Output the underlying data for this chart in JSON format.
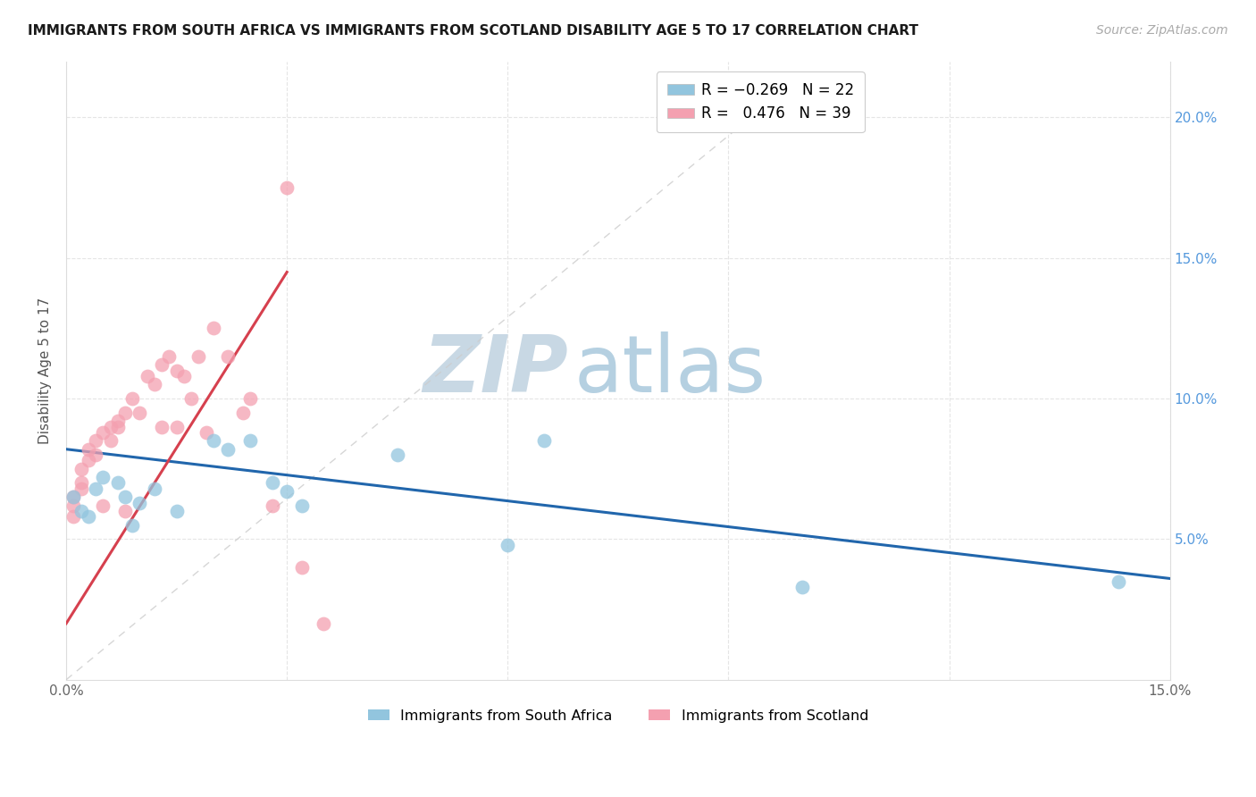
{
  "title": "IMMIGRANTS FROM SOUTH AFRICA VS IMMIGRANTS FROM SCOTLAND DISABILITY AGE 5 TO 17 CORRELATION CHART",
  "source": "Source: ZipAtlas.com",
  "ylabel": "Disability Age 5 to 17",
  "xmin": 0.0,
  "xmax": 0.15,
  "ymin": 0.0,
  "ymax": 0.22,
  "xticks": [
    0.0,
    0.03,
    0.06,
    0.09,
    0.12,
    0.15
  ],
  "xtick_labels": [
    "0.0%",
    "",
    "",
    "",
    "",
    "15.0%"
  ],
  "yticks": [
    0.05,
    0.1,
    0.15,
    0.2
  ],
  "ytick_labels_right": [
    "5.0%",
    "10.0%",
    "15.0%",
    "20.0%"
  ],
  "series1_color": "#92c5de",
  "series2_color": "#f4a0b0",
  "trendline1_color": "#2166ac",
  "trendline2_color": "#d6404e",
  "watermark_zip_color": "#c8d8e4",
  "watermark_atlas_color": "#a8c8dc",
  "south_africa_x": [
    0.001,
    0.002,
    0.003,
    0.004,
    0.005,
    0.007,
    0.008,
    0.009,
    0.01,
    0.012,
    0.015,
    0.02,
    0.022,
    0.025,
    0.028,
    0.03,
    0.032,
    0.045,
    0.06,
    0.065,
    0.1,
    0.143
  ],
  "south_africa_y": [
    0.065,
    0.06,
    0.058,
    0.068,
    0.072,
    0.07,
    0.065,
    0.055,
    0.063,
    0.068,
    0.06,
    0.085,
    0.082,
    0.085,
    0.07,
    0.067,
    0.062,
    0.08,
    0.048,
    0.085,
    0.033,
    0.035
  ],
  "scotland_x": [
    0.001,
    0.001,
    0.001,
    0.002,
    0.002,
    0.002,
    0.003,
    0.003,
    0.004,
    0.004,
    0.005,
    0.005,
    0.006,
    0.006,
    0.007,
    0.007,
    0.008,
    0.008,
    0.009,
    0.01,
    0.011,
    0.012,
    0.013,
    0.013,
    0.014,
    0.015,
    0.015,
    0.016,
    0.017,
    0.018,
    0.019,
    0.02,
    0.022,
    0.024,
    0.025,
    0.028,
    0.03,
    0.032,
    0.035
  ],
  "scotland_y": [
    0.058,
    0.062,
    0.065,
    0.068,
    0.07,
    0.075,
    0.078,
    0.082,
    0.08,
    0.085,
    0.088,
    0.062,
    0.085,
    0.09,
    0.092,
    0.09,
    0.095,
    0.06,
    0.1,
    0.095,
    0.108,
    0.105,
    0.112,
    0.09,
    0.115,
    0.11,
    0.09,
    0.108,
    0.1,
    0.115,
    0.088,
    0.125,
    0.115,
    0.095,
    0.1,
    0.062,
    0.175,
    0.04,
    0.02
  ],
  "trendline1_x0": 0.0,
  "trendline1_x1": 0.15,
  "trendline1_y0": 0.082,
  "trendline1_y1": 0.036,
  "trendline2_x0": 0.0,
  "trendline2_x1": 0.03,
  "trendline2_y0": 0.02,
  "trendline2_y1": 0.145,
  "refline_x0": 0.0,
  "refline_x1": 0.1,
  "refline_y0": 0.0,
  "refline_y1": 0.215
}
